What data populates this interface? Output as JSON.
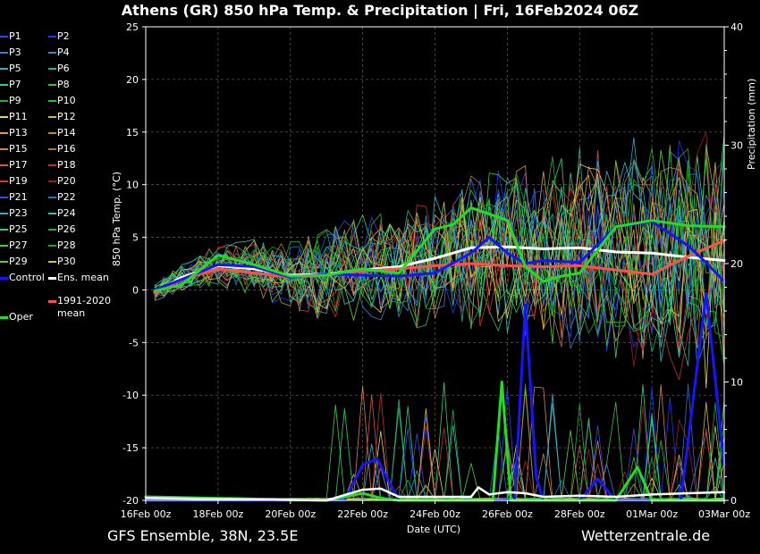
{
  "title": "Athens  (GR)  850 hPa Temp. & Precipitation | Fri, 16Feb2024 06Z",
  "footer": {
    "left": "GFS Ensemble, 38N, 23.5E",
    "right": "Wetterzentrale.de"
  },
  "chart_data": {
    "type": "line",
    "ylabel": "850 hPa Temp. (°C)",
    "y2label": "Precipitation (mm)",
    "xlabel": "Date (UTC)",
    "ylim": [
      -20,
      25
    ],
    "y2lim": [
      0,
      40
    ],
    "yticks": [
      25,
      20,
      15,
      10,
      5,
      0,
      -5,
      -10,
      -15,
      -20
    ],
    "y2ticks": [
      40,
      30,
      20,
      10,
      0
    ],
    "xlim_days": [
      0,
      16
    ],
    "xticks": [
      {
        "day": 0,
        "label": "16Feb 00z"
      },
      {
        "day": 2,
        "label": "18Feb 00z"
      },
      {
        "day": 4,
        "label": "20Feb 00z"
      },
      {
        "day": 6,
        "label": "22Feb 00z"
      },
      {
        "day": 8,
        "label": "24Feb 00z"
      },
      {
        "day": 10,
        "label": "26Feb 00z"
      },
      {
        "day": 12,
        "label": "28Feb 00z"
      },
      {
        "day": 14,
        "label": "01Mar 00z"
      },
      {
        "day": 16,
        "label": "03Mar 00z"
      }
    ],
    "grid": true,
    "legend_placement": "left",
    "series": [
      {
        "name": "Ens. mean",
        "color": "#ffffff",
        "x": [
          0.25,
          1,
          2,
          3,
          4,
          5,
          6,
          7,
          8,
          9,
          10,
          11,
          12,
          13,
          14,
          15,
          16
        ],
        "y": [
          -0.2,
          1.2,
          2.3,
          2.0,
          1.4,
          1.5,
          1.9,
          2.2,
          3.0,
          4.0,
          4.1,
          3.9,
          4.0,
          3.6,
          3.5,
          3.1,
          2.8
        ]
      },
      {
        "name": "1991-2020 mean",
        "color": "#ff5050",
        "x": [
          0.25,
          1,
          2,
          3,
          4,
          5,
          6,
          7,
          8,
          9,
          10,
          11,
          12,
          13,
          14,
          15,
          16
        ],
        "y": [
          -0.3,
          1.0,
          2.0,
          1.6,
          1.2,
          1.4,
          1.8,
          2.0,
          2.3,
          2.5,
          2.3,
          2.2,
          2.3,
          1.9,
          1.5,
          3.2,
          4.7
        ]
      },
      {
        "name": "Control",
        "color": "#1515ff",
        "x": [
          0.25,
          1,
          2,
          3,
          4,
          5,
          6,
          7,
          8,
          9,
          9.5,
          10,
          10.5,
          11,
          12,
          13,
          14,
          15,
          15.5,
          16
        ],
        "y": [
          0.0,
          1.0,
          2.4,
          2.2,
          1.2,
          1.5,
          1.4,
          1.3,
          1.6,
          3.5,
          5.0,
          3.5,
          2.5,
          2.8,
          2.6,
          6.0,
          6.5,
          4.2,
          2.6,
          0.8
        ]
      },
      {
        "name": "Oper",
        "color": "#22dd22",
        "x": [
          0.25,
          1,
          2,
          3,
          4,
          5,
          6,
          7,
          8,
          8.5,
          9,
          9.5,
          10,
          10.5,
          11,
          11.5,
          12,
          13,
          14,
          15,
          16
        ],
        "y": [
          -0.1,
          0.5,
          3.3,
          2.4,
          1.3,
          1.4,
          2.0,
          1.6,
          5.8,
          6.2,
          7.8,
          7.2,
          6.6,
          2.2,
          0.8,
          1.3,
          1.6,
          6.0,
          6.6,
          6.1,
          6.0
        ]
      }
    ],
    "precip_series": [
      {
        "name": "Control",
        "color": "#1515ff",
        "x": [
          0,
          5.5,
          6,
          6.4,
          7,
          9,
          10.2,
          10.5,
          10.8,
          11,
          11.5,
          12,
          12.5,
          13,
          14,
          14.8,
          15.2,
          15.5,
          16
        ],
        "y": [
          0,
          0,
          3,
          3.5,
          0,
          0,
          0,
          16.5,
          2,
          0,
          0,
          0,
          1.8,
          0,
          0,
          0,
          10,
          17.5,
          3
        ]
      },
      {
        "name": "Oper",
        "color": "#22dd22",
        "x": [
          0,
          5,
          6,
          6.5,
          7,
          9,
          9.6,
          9.85,
          10.1,
          10.3,
          11,
          12,
          13,
          13.6,
          14,
          16
        ],
        "y": [
          0.3,
          0,
          0.6,
          0.2,
          0,
          0,
          0,
          10,
          0,
          0,
          0,
          0,
          0,
          2.8,
          0,
          0
        ]
      },
      {
        "name": "Ens. mean",
        "color": "#ffffff",
        "x": [
          0,
          5,
          6,
          6.5,
          7,
          9,
          9.2,
          9.5,
          10,
          10.5,
          11,
          12,
          13,
          14,
          15,
          16
        ],
        "y": [
          0.2,
          0,
          0.9,
          1.0,
          0.3,
          0.3,
          1.1,
          0.5,
          0.7,
          0.6,
          0.3,
          0.4,
          0.3,
          0.5,
          0.6,
          0.7
        ]
      }
    ],
    "legend": [
      {
        "label": "P1",
        "color": "#3344ee"
      },
      {
        "label": "P2",
        "color": "#2233ff"
      },
      {
        "label": "P3",
        "color": "#4477cc"
      },
      {
        "label": "P4",
        "color": "#2a8fd0"
      },
      {
        "label": "P5",
        "color": "#30b0c0"
      },
      {
        "label": "P6",
        "color": "#2ab094"
      },
      {
        "label": "P7",
        "color": "#30d080"
      },
      {
        "label": "P8",
        "color": "#33c050"
      },
      {
        "label": "P9",
        "color": "#22b02a"
      },
      {
        "label": "P10",
        "color": "#11cc22"
      },
      {
        "label": "P11",
        "color": "#e0d070"
      },
      {
        "label": "P12",
        "color": "#d0b84a"
      },
      {
        "label": "P13",
        "color": "#d8a050"
      },
      {
        "label": "P14",
        "color": "#c08840"
      },
      {
        "label": "P15",
        "color": "#d88050"
      },
      {
        "label": "P16",
        "color": "#b86e3a"
      },
      {
        "label": "P17",
        "color": "#d05a40"
      },
      {
        "label": "P18",
        "color": "#c03030"
      },
      {
        "label": "P19",
        "color": "#cc3a2a"
      },
      {
        "label": "P20",
        "color": "#9a2218"
      },
      {
        "label": "P21",
        "color": "#3050dd"
      },
      {
        "label": "P22",
        "color": "#2a70c0"
      },
      {
        "label": "P23",
        "color": "#2ab0c8"
      },
      {
        "label": "P24",
        "color": "#30c0b0"
      },
      {
        "label": "P25",
        "color": "#30d078"
      },
      {
        "label": "P26",
        "color": "#20b048"
      },
      {
        "label": "P27",
        "color": "#40cc40"
      },
      {
        "label": "P28",
        "color": "#18a828"
      },
      {
        "label": "P29",
        "color": "#66cc33"
      },
      {
        "label": "P30",
        "color": "#d4c040"
      },
      {
        "label": "Control",
        "color": "#1515ff",
        "thick": true
      },
      {
        "label": "Ens. mean",
        "color": "#ffffff",
        "thick": true
      },
      {
        "label": "1991-2020\nmean",
        "color": "#ff5050",
        "thick": true
      },
      {
        "label": "Oper",
        "color": "#22dd22",
        "thick": true
      }
    ]
  }
}
